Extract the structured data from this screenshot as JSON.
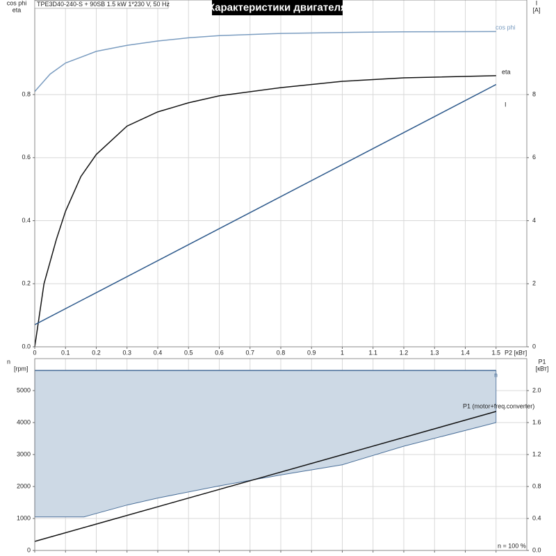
{
  "chart_data": [
    {
      "type": "line",
      "title": "Характеристики двигателя",
      "subtitle": "TPE3D40-240-S + 90SB   1.5 kW   1*230 V, 50 Hz",
      "xlabel": "P2 [кВт]",
      "ylabel": [
        "cos phi",
        "eta"
      ],
      "y2label": [
        "I",
        "[A]"
      ],
      "xlim": [
        0,
        1.6
      ],
      "xticks": [
        0,
        0.1,
        0.2,
        0.3,
        0.4,
        0.5,
        0.6,
        0.7,
        0.8,
        0.9,
        1.0,
        1.1,
        1.2,
        1.3,
        1.4,
        1.5
      ],
      "ylim": [
        0,
        1.1
      ],
      "yticks": [
        {
          "value": 0,
          "label": "0.0"
        },
        0.2,
        0.4,
        0.6,
        0.8
      ],
      "y2lim": [
        0,
        11
      ],
      "y2ticks": [
        0,
        2,
        4,
        6,
        8
      ],
      "grid": true,
      "series": [
        {
          "name": "cos phi",
          "color": "#7a9cc0",
          "x": [
            0,
            0.05,
            0.1,
            0.2,
            0.3,
            0.4,
            0.5,
            0.6,
            0.8,
            1.0,
            1.2,
            1.5
          ],
          "values": [
            0.81,
            0.865,
            0.9,
            0.937,
            0.956,
            0.97,
            0.98,
            0.987,
            0.994,
            0.997,
            0.999,
            1.0
          ]
        },
        {
          "name": "eta",
          "color": "#111111",
          "x": [
            0,
            0.03,
            0.07,
            0.1,
            0.15,
            0.2,
            0.3,
            0.4,
            0.5,
            0.6,
            0.8,
            1.0,
            1.2,
            1.5
          ],
          "values": [
            0,
            0.2,
            0.34,
            0.43,
            0.54,
            0.61,
            0.7,
            0.745,
            0.774,
            0.796,
            0.822,
            0.842,
            0.853,
            0.86
          ]
        },
        {
          "name": "I",
          "color": "#2e5a8c",
          "axis": "y2",
          "x": [
            0,
            1.5
          ],
          "values": [
            0.7,
            8.32
          ]
        }
      ]
    },
    {
      "type": "combo",
      "ylabel": [
        "n",
        "[rpm]"
      ],
      "y2label": [
        "P1",
        "[кВт]"
      ],
      "annotation": "n = 100 %",
      "xlim": [
        0,
        1.6
      ],
      "xticks": [
        0,
        0.1,
        0.2,
        0.3,
        0.4,
        0.5,
        0.6,
        0.7,
        0.8,
        0.9,
        1.0,
        1.1,
        1.2,
        1.3,
        1.4,
        1.5
      ],
      "xtick_labels": false,
      "ylim": [
        0,
        6000
      ],
      "yticks": [
        0,
        1000,
        2000,
        3000,
        4000,
        5000
      ],
      "y2lim": [
        0,
        2.4
      ],
      "y2ticks": [
        {
          "value": 0,
          "label": "0.0"
        },
        0.4,
        0.8,
        1.2,
        1.6,
        {
          "value": 2,
          "label": "2.0"
        }
      ],
      "grid": true,
      "series": [
        {
          "name": "n",
          "kind": "band",
          "color": "#cdd9e5",
          "edge": "#4a6f99",
          "upper": {
            "x": [
              0,
              1.5
            ],
            "values": [
              5630,
              5630
            ]
          },
          "lower": {
            "x": [
              0,
              0.16,
              0.3,
              0.4,
              0.6,
              0.8,
              1.0,
              1.2,
              1.5
            ],
            "values": [
              1050,
              1050,
              1420,
              1640,
              2020,
              2360,
              2680,
              3260,
              4000
            ]
          }
        },
        {
          "name": "P1 (motor+freq.converter)",
          "kind": "line",
          "color": "#111111",
          "axis": "y2",
          "x": [
            0,
            1.5
          ],
          "values": [
            0.113,
            1.739
          ]
        }
      ]
    }
  ]
}
